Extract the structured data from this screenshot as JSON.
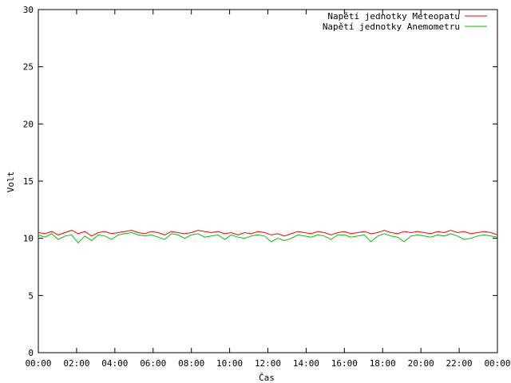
{
  "chart_data": {
    "type": "line",
    "xlabel": "Čas",
    "ylabel": "Volt",
    "ylim": [
      0,
      30
    ],
    "yticks": [
      0,
      5,
      10,
      15,
      20,
      25,
      30
    ],
    "xlim_hours": [
      0,
      24
    ],
    "xticks": [
      "00:00",
      "02:00",
      "04:00",
      "06:00",
      "08:00",
      "10:00",
      "12:00",
      "14:00",
      "16:00",
      "18:00",
      "20:00",
      "22:00",
      "00:00"
    ],
    "grid": false,
    "legend_position": "top-right",
    "series": [
      {
        "name": "Napětí jednotky Meteopatu",
        "color": "#ff0000",
        "values": [
          10.5,
          10.4,
          10.6,
          10.3,
          10.5,
          10.7,
          10.4,
          10.6,
          10.2,
          10.5,
          10.6,
          10.4,
          10.5,
          10.6,
          10.7,
          10.5,
          10.4,
          10.6,
          10.5,
          10.3,
          10.6,
          10.5,
          10.4,
          10.5,
          10.7,
          10.6,
          10.5,
          10.6,
          10.4,
          10.5,
          10.3,
          10.5,
          10.4,
          10.6,
          10.5,
          10.3,
          10.4,
          10.2,
          10.4,
          10.6,
          10.5,
          10.4,
          10.6,
          10.5,
          10.3,
          10.5,
          10.6,
          10.4,
          10.5,
          10.6,
          10.4,
          10.5,
          10.7,
          10.5,
          10.4,
          10.6,
          10.5,
          10.6,
          10.5,
          10.4,
          10.6,
          10.5,
          10.7,
          10.5,
          10.6,
          10.4,
          10.5,
          10.6,
          10.5,
          10.3
        ]
      },
      {
        "name": "Napětí jednotky Anemometru",
        "color": "#00c000",
        "values": [
          10.3,
          10.1,
          10.4,
          9.9,
          10.2,
          10.3,
          9.6,
          10.2,
          9.8,
          10.3,
          10.2,
          9.9,
          10.3,
          10.4,
          10.5,
          10.3,
          10.2,
          10.3,
          10.1,
          9.9,
          10.4,
          10.3,
          10.0,
          10.3,
          10.4,
          10.1,
          10.2,
          10.3,
          9.9,
          10.3,
          10.1,
          10.0,
          10.2,
          10.3,
          10.2,
          9.7,
          10.0,
          9.8,
          10.0,
          10.3,
          10.2,
          10.1,
          10.3,
          10.2,
          9.9,
          10.3,
          10.3,
          10.1,
          10.2,
          10.3,
          9.7,
          10.2,
          10.4,
          10.2,
          10.1,
          9.7,
          10.2,
          10.3,
          10.2,
          10.1,
          10.3,
          10.2,
          10.4,
          10.2,
          9.9,
          10.0,
          10.2,
          10.3,
          10.2,
          10.1
        ]
      }
    ]
  }
}
